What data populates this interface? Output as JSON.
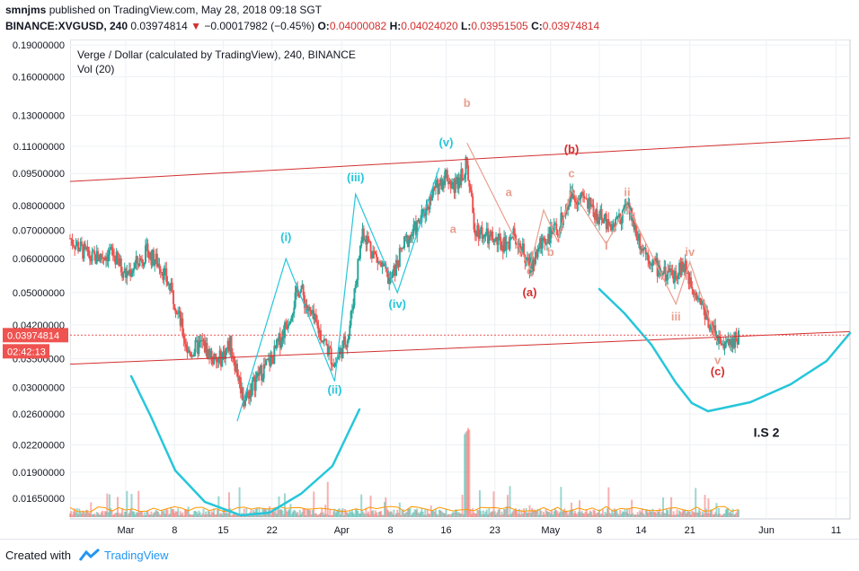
{
  "header": {
    "publisher": "smnjms",
    "published_text": "published on TradingView.com, May 28, 2018 09:18 SGT",
    "symbol": "BINANCE:XVGUSD, 240",
    "last": "0.03974814",
    "change": "−0.00017982 (−0.45%)",
    "o_label": "O:",
    "o_value": "0.04000082",
    "h_label": "H:",
    "h_value": "0.04024020",
    "l_label": "L:",
    "l_value": "0.03951505",
    "c_label": "C:",
    "c_value": "0.03974814"
  },
  "footer": {
    "created_with": "Created with",
    "brand": "TradingView"
  },
  "chart_data": {
    "type": "candlestick",
    "title": "Verge / Dollar (calculated by TradingView), 240, BINANCE",
    "subtitle": "Vol (20)",
    "y_scale": "log",
    "y_ticks": [
      "0.19000000",
      "0.16000000",
      "0.13000000",
      "0.11000000",
      "0.09500000",
      "0.08000000",
      "0.07000000",
      "0.06000000",
      "0.05000000",
      "0.04200000",
      "0.03500000",
      "0.03000000",
      "0.02600000",
      "0.02200000",
      "0.01900000",
      "0.01650000"
    ],
    "x_ticks": [
      "Mar",
      "8",
      "15",
      "22",
      "Apr",
      "8",
      "16",
      "23",
      "May",
      "8",
      "14",
      "21",
      "Jun",
      "11"
    ],
    "last_price_label": "0.03974814",
    "countdown_label": "02:42:13",
    "colors": {
      "up": "#26a69a",
      "down": "#ef5350",
      "wave_blue": "#26c6da",
      "wave_salmon": "#e8a090",
      "wave_red": "#d32f2f",
      "trend": "#d32f2f"
    },
    "price_path": [
      [
        "2018-02-21",
        0.067
      ],
      [
        "2018-02-24",
        0.06
      ],
      [
        "2018-02-27",
        0.062
      ],
      [
        "2018-03-01",
        0.055
      ],
      [
        "2018-03-04",
        0.062
      ],
      [
        "2018-03-06",
        0.058
      ],
      [
        "2018-03-08",
        0.048
      ],
      [
        "2018-03-10",
        0.036
      ],
      [
        "2018-03-12",
        0.038
      ],
      [
        "2018-03-14",
        0.034
      ],
      [
        "2018-03-16",
        0.038
      ],
      [
        "2018-03-18",
        0.028
      ],
      [
        "2018-03-20",
        0.032
      ],
      [
        "2018-03-22",
        0.035
      ],
      [
        "2018-03-24",
        0.042
      ],
      [
        "2018-03-26",
        0.052
      ],
      [
        "2018-03-27",
        0.046
      ],
      [
        "2018-03-29",
        0.04
      ],
      [
        "2018-03-31",
        0.034
      ],
      [
        "2018-04-02",
        0.04
      ],
      [
        "2018-04-04",
        0.07
      ],
      [
        "2018-04-06",
        0.06
      ],
      [
        "2018-04-08",
        0.053
      ],
      [
        "2018-04-10",
        0.065
      ],
      [
        "2018-04-12",
        0.072
      ],
      [
        "2018-04-14",
        0.085
      ],
      [
        "2018-04-16",
        0.095
      ],
      [
        "2018-04-17",
        0.088
      ],
      [
        "2018-04-19",
        0.1
      ],
      [
        "2018-04-20",
        0.072
      ],
      [
        "2018-04-22",
        0.067
      ],
      [
        "2018-04-24",
        0.065
      ],
      [
        "2018-04-26",
        0.068
      ],
      [
        "2018-04-28",
        0.057
      ],
      [
        "2018-04-30",
        0.067
      ],
      [
        "2018-05-02",
        0.07
      ],
      [
        "2018-05-04",
        0.085
      ],
      [
        "2018-05-06",
        0.082
      ],
      [
        "2018-05-08",
        0.075
      ],
      [
        "2018-05-10",
        0.072
      ],
      [
        "2018-05-12",
        0.08
      ],
      [
        "2018-05-14",
        0.065
      ],
      [
        "2018-05-16",
        0.058
      ],
      [
        "2018-05-18",
        0.054
      ],
      [
        "2018-05-20",
        0.058
      ],
      [
        "2018-05-22",
        0.05
      ],
      [
        "2018-05-24",
        0.042
      ],
      [
        "2018-05-26",
        0.037
      ],
      [
        "2018-05-28",
        0.0397
      ]
    ],
    "trendlines": [
      {
        "from": [
          "2018-02-21",
          0.091
        ],
        "to": [
          "2018-06-13",
          0.115
        ]
      },
      {
        "from": [
          "2018-02-21",
          0.034
        ],
        "to": [
          "2018-06-13",
          0.0405
        ]
      }
    ],
    "wave_labels": [
      {
        "text": "(i)",
        "date": "2018-03-24",
        "price": 0.066,
        "color": "#26c6da"
      },
      {
        "text": "(ii)",
        "date": "2018-03-31",
        "price": 0.029,
        "color": "#26c6da"
      },
      {
        "text": "(iii)",
        "date": "2018-04-03",
        "price": 0.091,
        "color": "#26c6da"
      },
      {
        "text": "(iv)",
        "date": "2018-04-09",
        "price": 0.046,
        "color": "#26c6da"
      },
      {
        "text": "(v)",
        "date": "2018-04-16",
        "price": 0.11,
        "color": "#26c6da"
      },
      {
        "text": "a",
        "date": "2018-04-17",
        "price": 0.069,
        "color": "#e8a090"
      },
      {
        "text": "b",
        "date": "2018-04-19",
        "price": 0.136,
        "color": "#e8a090"
      },
      {
        "text": "a",
        "date": "2018-04-25",
        "price": 0.084,
        "color": "#e8a090"
      },
      {
        "text": "c",
        "date": "2018-04-28",
        "price": 0.055,
        "color": "#e8a090"
      },
      {
        "text": "(a)",
        "date": "2018-04-28",
        "price": 0.049,
        "color": "#d32f2f"
      },
      {
        "text": "b",
        "date": "2018-05-01",
        "price": 0.061,
        "color": "#e8a090"
      },
      {
        "text": "c",
        "date": "2018-05-04",
        "price": 0.093,
        "color": "#e8a090"
      },
      {
        "text": "(b)",
        "date": "2018-05-04",
        "price": 0.106,
        "color": "#d32f2f"
      },
      {
        "text": "i",
        "date": "2018-05-09",
        "price": 0.063,
        "color": "#e8a090"
      },
      {
        "text": "ii",
        "date": "2018-05-12",
        "price": 0.084,
        "color": "#e8a090"
      },
      {
        "text": "iii",
        "date": "2018-05-19",
        "price": 0.043,
        "color": "#e8a090"
      },
      {
        "text": "iv",
        "date": "2018-05-21",
        "price": 0.061,
        "color": "#e8a090"
      },
      {
        "text": "v",
        "date": "2018-05-25",
        "price": 0.034,
        "color": "#e8a090"
      },
      {
        "text": "(c)",
        "date": "2018-05-25",
        "price": 0.032,
        "color": "#d32f2f"
      },
      {
        "text": "I.S 2",
        "date": "2018-06-01",
        "price": 0.023,
        "color": "#131722"
      }
    ],
    "grid": true,
    "legend": "none"
  }
}
